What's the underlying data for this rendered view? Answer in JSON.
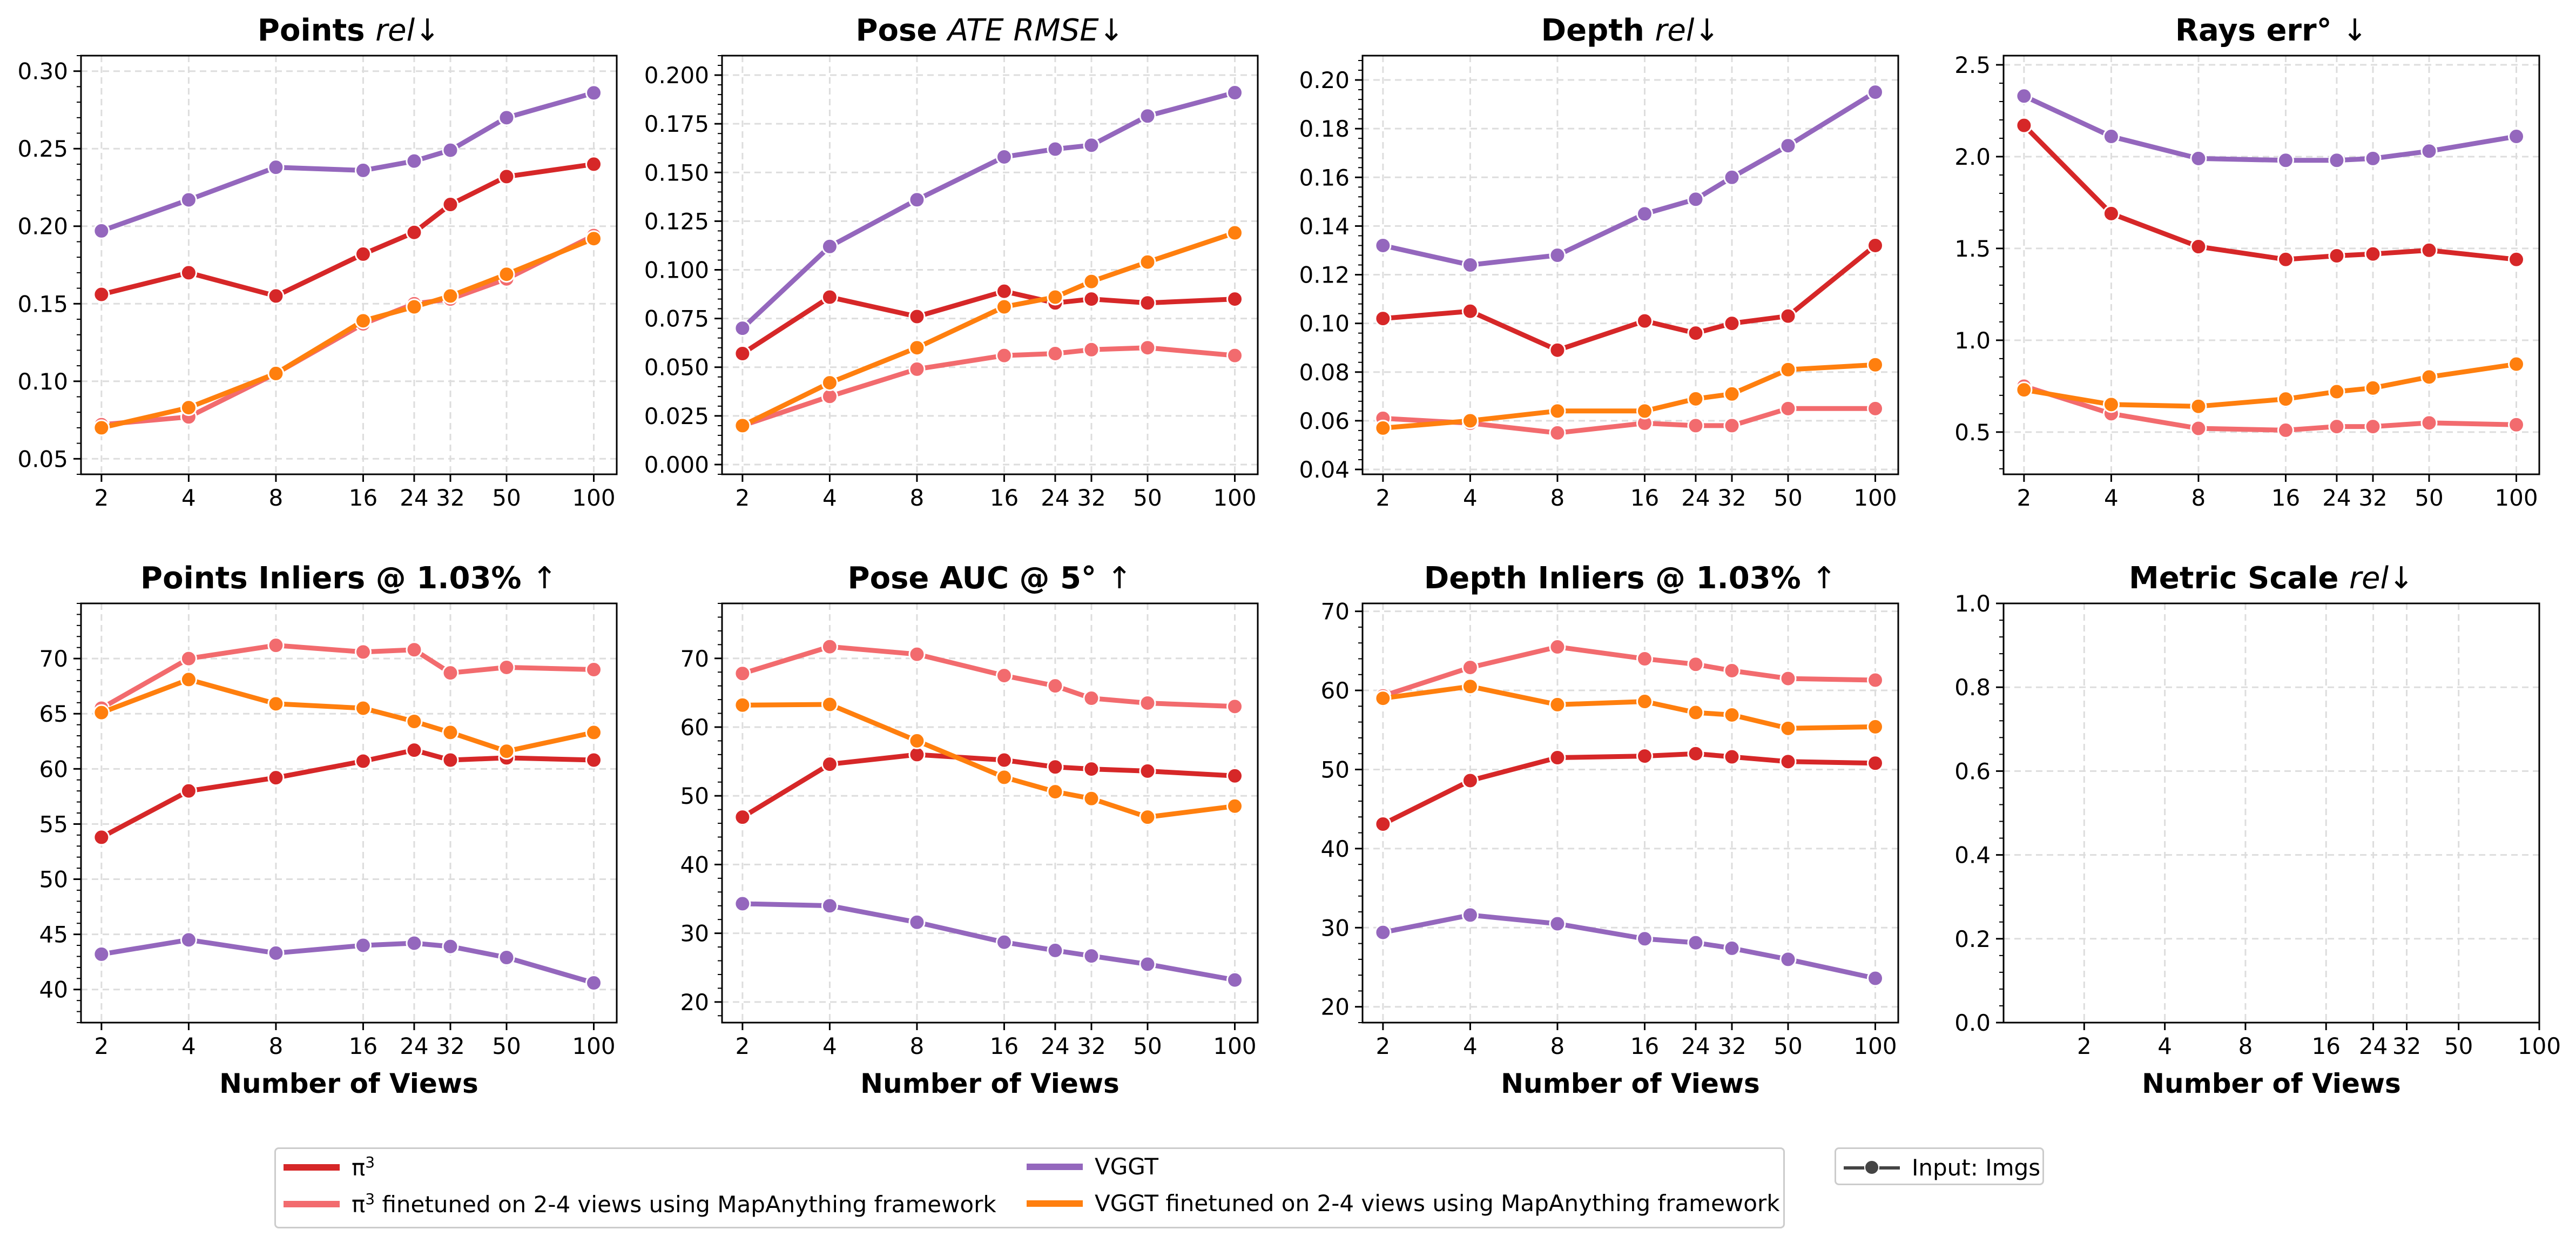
{
  "colors": {
    "pi3": "#d62728",
    "pi3_ft": "#f26b6e",
    "vggt": "#9467bd",
    "vggt_ft": "#ff7f0e",
    "input": "#444444"
  },
  "legend": {
    "items": [
      {
        "key": "pi3",
        "label_main": "π",
        "label_sup": "3",
        "label_rest": ""
      },
      {
        "key": "pi3_ft",
        "label_main": "π",
        "label_sup": "3",
        "label_rest": " finetuned on 2-4 views using MapAnything framework"
      },
      {
        "key": "vggt",
        "label_main": "VGGT",
        "label_sup": "",
        "label_rest": ""
      },
      {
        "key": "vggt_ft",
        "label_main": "VGGT finetuned on 2-4 views using MapAnything framework",
        "label_sup": "",
        "label_rest": ""
      }
    ],
    "input_label": "Input: Imgs"
  },
  "chart_data": [
    {
      "type": "line",
      "title_main": "Points ",
      "title_italic": "rel",
      "title_suffix": "↓",
      "xlabel": "",
      "x": [
        2,
        4,
        8,
        16,
        24,
        32,
        50,
        100
      ],
      "xticks": [
        "2",
        "4",
        "8",
        "16",
        "24",
        "32",
        "50",
        "100"
      ],
      "xscale": "log",
      "xlim": [
        1.7,
        120
      ],
      "ylim": [
        0.04,
        0.31
      ],
      "yticks": [
        0.05,
        0.1,
        0.15,
        0.2,
        0.25,
        0.3
      ],
      "ytick_labels": [
        "0.05",
        "0.10",
        "0.15",
        "0.20",
        "0.25",
        "0.30"
      ],
      "grid": true,
      "series": [
        {
          "key": "pi3",
          "values": [
            0.156,
            0.17,
            0.155,
            0.182,
            0.196,
            0.214,
            0.232,
            0.24
          ]
        },
        {
          "key": "pi3_ft",
          "values": [
            0.072,
            0.077,
            0.105,
            0.137,
            0.15,
            0.153,
            0.166,
            0.194
          ]
        },
        {
          "key": "vggt",
          "values": [
            0.197,
            0.217,
            0.238,
            0.236,
            0.242,
            0.249,
            0.27,
            0.286
          ]
        },
        {
          "key": "vggt_ft",
          "values": [
            0.07,
            0.083,
            0.105,
            0.139,
            0.148,
            0.155,
            0.169,
            0.192
          ]
        }
      ]
    },
    {
      "type": "line",
      "title_main": "Pose ",
      "title_italic": "ATE RMSE",
      "title_suffix": "↓",
      "xlabel": "",
      "x": [
        2,
        4,
        8,
        16,
        24,
        32,
        50,
        100
      ],
      "xticks": [
        "2",
        "4",
        "8",
        "16",
        "24",
        "32",
        "50",
        "100"
      ],
      "xscale": "log",
      "xlim": [
        1.7,
        120
      ],
      "ylim": [
        -0.005,
        0.21
      ],
      "yticks": [
        0.0,
        0.025,
        0.05,
        0.075,
        0.1,
        0.125,
        0.15,
        0.175,
        0.2
      ],
      "ytick_labels": [
        "0.000",
        "0.025",
        "0.050",
        "0.075",
        "0.100",
        "0.125",
        "0.150",
        "0.175",
        "0.200"
      ],
      "grid": true,
      "series": [
        {
          "key": "pi3",
          "values": [
            0.057,
            0.086,
            0.076,
            0.089,
            0.083,
            0.085,
            0.083,
            0.085
          ]
        },
        {
          "key": "pi3_ft",
          "values": [
            0.02,
            0.035,
            0.049,
            0.056,
            0.057,
            0.059,
            0.06,
            0.056
          ]
        },
        {
          "key": "vggt",
          "values": [
            0.07,
            0.112,
            0.136,
            0.158,
            0.162,
            0.164,
            0.179,
            0.191
          ]
        },
        {
          "key": "vggt_ft",
          "values": [
            0.02,
            0.042,
            0.06,
            0.081,
            0.086,
            0.094,
            0.104,
            0.119
          ]
        }
      ]
    },
    {
      "type": "line",
      "title_main": "Depth ",
      "title_italic": "rel",
      "title_suffix": "↓",
      "xlabel": "",
      "x": [
        2,
        4,
        8,
        16,
        24,
        32,
        50,
        100
      ],
      "xticks": [
        "2",
        "4",
        "8",
        "16",
        "24",
        "32",
        "50",
        "100"
      ],
      "xscale": "log",
      "xlim": [
        1.7,
        120
      ],
      "ylim": [
        0.038,
        0.21
      ],
      "yticks": [
        0.04,
        0.06,
        0.08,
        0.1,
        0.12,
        0.14,
        0.16,
        0.18,
        0.2
      ],
      "ytick_labels": [
        "0.04",
        "0.06",
        "0.08",
        "0.10",
        "0.12",
        "0.14",
        "0.16",
        "0.18",
        "0.20"
      ],
      "grid": true,
      "series": [
        {
          "key": "pi3",
          "values": [
            0.102,
            0.105,
            0.089,
            0.101,
            0.096,
            0.1,
            0.103,
            0.132
          ]
        },
        {
          "key": "pi3_ft",
          "values": [
            0.061,
            0.059,
            0.055,
            0.059,
            0.058,
            0.058,
            0.065,
            0.065
          ]
        },
        {
          "key": "vggt",
          "values": [
            0.132,
            0.124,
            0.128,
            0.145,
            0.151,
            0.16,
            0.173,
            0.195
          ]
        },
        {
          "key": "vggt_ft",
          "values": [
            0.057,
            0.06,
            0.064,
            0.064,
            0.069,
            0.071,
            0.081,
            0.083
          ]
        }
      ]
    },
    {
      "type": "line",
      "title_main": "Rays err°  ",
      "title_italic": "",
      "title_suffix": "↓",
      "xlabel": "",
      "x": [
        2,
        4,
        8,
        16,
        24,
        32,
        50,
        100
      ],
      "xticks": [
        "2",
        "4",
        "8",
        "16",
        "24",
        "32",
        "50",
        "100"
      ],
      "xscale": "log",
      "xlim": [
        1.7,
        120
      ],
      "ylim": [
        0.27,
        2.55
      ],
      "yticks": [
        0.5,
        1.0,
        1.5,
        2.0,
        2.5
      ],
      "ytick_labels": [
        "0.5",
        "1.0",
        "1.5",
        "2.0",
        "2.5"
      ],
      "grid": true,
      "series": [
        {
          "key": "pi3",
          "values": [
            2.17,
            1.69,
            1.51,
            1.44,
            1.46,
            1.47,
            1.49,
            1.44
          ]
        },
        {
          "key": "pi3_ft",
          "values": [
            0.75,
            0.6,
            0.52,
            0.51,
            0.53,
            0.53,
            0.55,
            0.54
          ]
        },
        {
          "key": "vggt",
          "values": [
            2.33,
            2.11,
            1.99,
            1.98,
            1.98,
            1.99,
            2.03,
            2.11
          ]
        },
        {
          "key": "vggt_ft",
          "values": [
            0.73,
            0.65,
            0.64,
            0.68,
            0.72,
            0.74,
            0.8,
            0.87
          ]
        }
      ]
    },
    {
      "type": "line",
      "title_main": "Points Inliers @ 1.03%  ",
      "title_italic": "",
      "title_suffix": "↑",
      "xlabel": "Number of Views",
      "x": [
        2,
        4,
        8,
        16,
        24,
        32,
        50,
        100
      ],
      "xticks": [
        "2",
        "4",
        "8",
        "16",
        "24",
        "32",
        "50",
        "100"
      ],
      "xscale": "log",
      "xlim": [
        1.7,
        120
      ],
      "ylim": [
        37,
        75
      ],
      "yticks": [
        40,
        45,
        50,
        55,
        60,
        65,
        70
      ],
      "ytick_labels": [
        "40",
        "45",
        "50",
        "55",
        "60",
        "65",
        "70"
      ],
      "grid": true,
      "series": [
        {
          "key": "pi3",
          "values": [
            53.8,
            58.0,
            59.2,
            60.7,
            61.7,
            60.8,
            61.0,
            60.8
          ]
        },
        {
          "key": "pi3_ft",
          "values": [
            65.5,
            70.0,
            71.2,
            70.6,
            70.8,
            68.7,
            69.2,
            69.0
          ]
        },
        {
          "key": "vggt",
          "values": [
            43.2,
            44.5,
            43.3,
            44.0,
            44.2,
            43.9,
            42.9,
            40.6
          ]
        },
        {
          "key": "vggt_ft",
          "values": [
            65.1,
            68.1,
            65.9,
            65.5,
            64.3,
            63.3,
            61.6,
            63.3
          ]
        }
      ]
    },
    {
      "type": "line",
      "title_main": "Pose AUC @ 5°  ",
      "title_italic": "",
      "title_suffix": "↑",
      "xlabel": "Number of Views",
      "x": [
        2,
        4,
        8,
        16,
        24,
        32,
        50,
        100
      ],
      "xticks": [
        "2",
        "4",
        "8",
        "16",
        "24",
        "32",
        "50",
        "100"
      ],
      "xscale": "log",
      "xlim": [
        1.7,
        120
      ],
      "ylim": [
        17,
        78
      ],
      "yticks": [
        20,
        30,
        40,
        50,
        60,
        70
      ],
      "ytick_labels": [
        "20",
        "30",
        "40",
        "50",
        "60",
        "70"
      ],
      "grid": true,
      "series": [
        {
          "key": "pi3",
          "values": [
            46.9,
            54.6,
            56.0,
            55.2,
            54.2,
            53.9,
            53.6,
            52.9
          ]
        },
        {
          "key": "pi3_ft",
          "values": [
            67.8,
            71.7,
            70.6,
            67.5,
            66.0,
            64.2,
            63.5,
            63.0
          ]
        },
        {
          "key": "vggt",
          "values": [
            34.3,
            34.0,
            31.6,
            28.7,
            27.5,
            26.7,
            25.5,
            23.2
          ]
        },
        {
          "key": "vggt_ft",
          "values": [
            63.2,
            63.3,
            58.0,
            52.7,
            50.6,
            49.6,
            46.9,
            48.5
          ]
        }
      ]
    },
    {
      "type": "line",
      "title_main": "Depth Inliers @ 1.03%  ",
      "title_italic": "",
      "title_suffix": "↑",
      "xlabel": "Number of Views",
      "x": [
        2,
        4,
        8,
        16,
        24,
        32,
        50,
        100
      ],
      "xticks": [
        "2",
        "4",
        "8",
        "16",
        "24",
        "32",
        "50",
        "100"
      ],
      "xscale": "log",
      "xlim": [
        1.7,
        120
      ],
      "ylim": [
        18,
        71
      ],
      "yticks": [
        20,
        30,
        40,
        50,
        60,
        70
      ],
      "ytick_labels": [
        "20",
        "30",
        "40",
        "50",
        "60",
        "70"
      ],
      "grid": true,
      "series": [
        {
          "key": "pi3",
          "values": [
            43.1,
            48.6,
            51.5,
            51.7,
            52.0,
            51.6,
            51.0,
            50.8
          ]
        },
        {
          "key": "pi3_ft",
          "values": [
            59.3,
            62.9,
            65.5,
            64.0,
            63.3,
            62.5,
            61.5,
            61.3
          ]
        },
        {
          "key": "vggt",
          "values": [
            29.4,
            31.6,
            30.5,
            28.6,
            28.1,
            27.4,
            26.0,
            23.6
          ]
        },
        {
          "key": "vggt_ft",
          "values": [
            59.0,
            60.5,
            58.2,
            58.6,
            57.2,
            56.9,
            55.2,
            55.4
          ]
        }
      ]
    },
    {
      "type": "line",
      "title_main": "Metric Scale ",
      "title_italic": "rel",
      "title_suffix": "↓",
      "xlabel": "Number of Views",
      "x": [],
      "xticks": [
        "2",
        "4",
        "8",
        "16",
        "24",
        "32",
        "50",
        "100"
      ],
      "xtick_values": [
        2,
        4,
        8,
        16,
        24,
        32,
        50,
        100
      ],
      "xscale": "log",
      "xlim": [
        1,
        100
      ],
      "ylim": [
        0,
        1
      ],
      "yticks": [
        0.0,
        0.2,
        0.4,
        0.6,
        0.8,
        1.0
      ],
      "ytick_labels": [
        "0.0",
        "0.2",
        "0.4",
        "0.6",
        "0.8",
        "1.0"
      ],
      "grid": true,
      "series": []
    }
  ]
}
